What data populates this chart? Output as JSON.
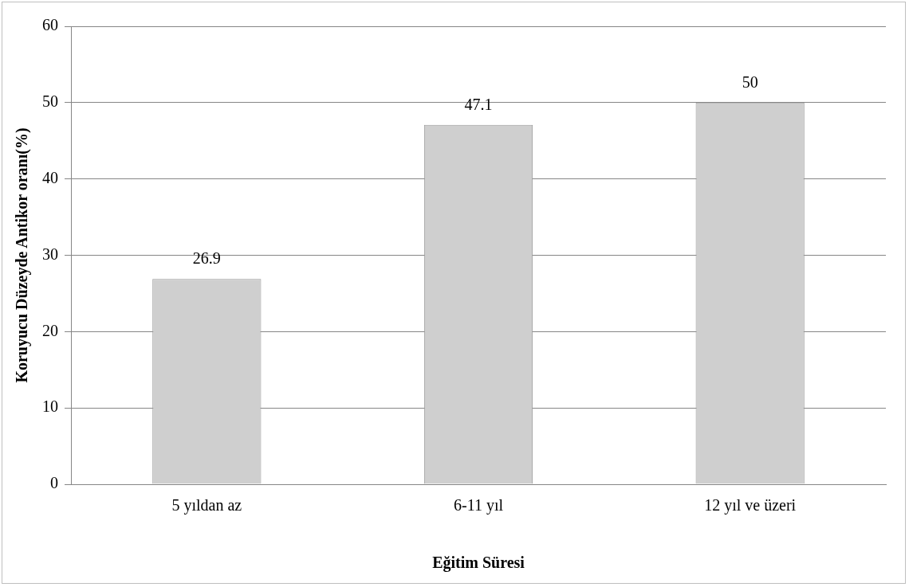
{
  "chart_data": {
    "type": "bar",
    "xlabel": "Eğitim Süresi",
    "ylabel": "Koruyucu Düzeyde Antikor oranı(%)",
    "categories": [
      "5 yıldan az",
      "6-11 yıl",
      "12 yıl ve üzeri"
    ],
    "values": [
      26.9,
      47.1,
      50
    ],
    "color": "#cfcfcf",
    "ylim": [
      0,
      60
    ],
    "yticks": [
      0,
      10,
      20,
      30,
      40,
      50,
      60
    ],
    "grid": "y",
    "data_labels": true,
    "legend": false
  }
}
